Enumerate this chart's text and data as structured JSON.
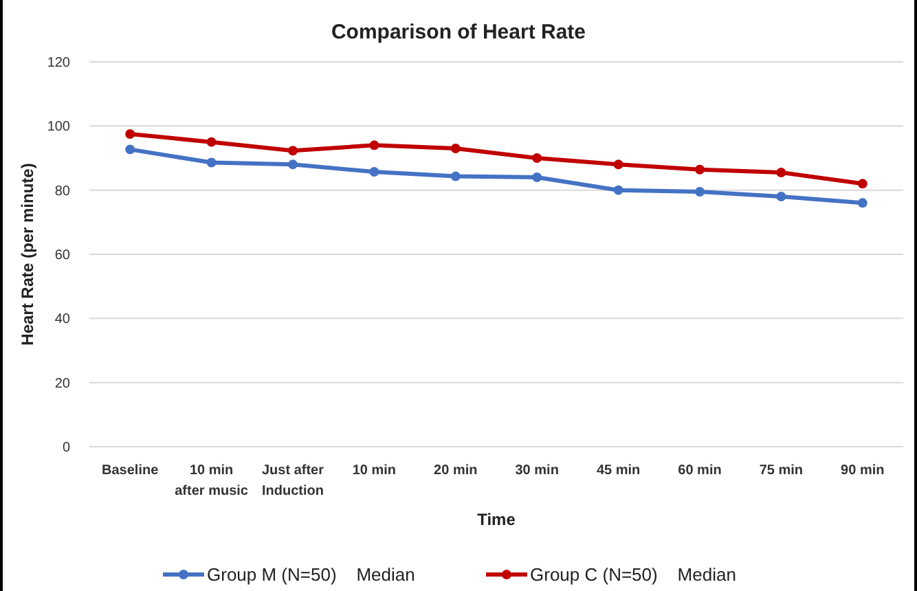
{
  "chart_data": {
    "type": "line",
    "title": "Comparison of Heart Rate",
    "xlabel": "Time",
    "ylabel": "Heart Rate (per minute)",
    "categories": [
      "Baseline",
      "10 min\nafter music",
      "Just after\nInduction",
      "10 min",
      "20 min",
      "30 min",
      "45 min",
      "60 min",
      "75 min",
      "90 min"
    ],
    "series": [
      {
        "name": "Group M (N=50)    Median",
        "color": "#4472c4",
        "values": [
          92.7,
          88.6,
          88,
          85.7,
          84.3,
          84,
          80,
          79.5,
          78,
          76
        ]
      },
      {
        "name": "Group C (N=50)    Median",
        "color": "#c00000",
        "values": [
          97.5,
          95,
          92.3,
          94,
          93,
          90,
          88,
          86.4,
          85.5,
          82
        ]
      }
    ],
    "ylim": [
      0,
      120
    ],
    "yticks": [
      0,
      20,
      40,
      60,
      80,
      100,
      120
    ],
    "grid": "y",
    "legend": "bottom",
    "marker": "circle",
    "line_style": "solid"
  }
}
